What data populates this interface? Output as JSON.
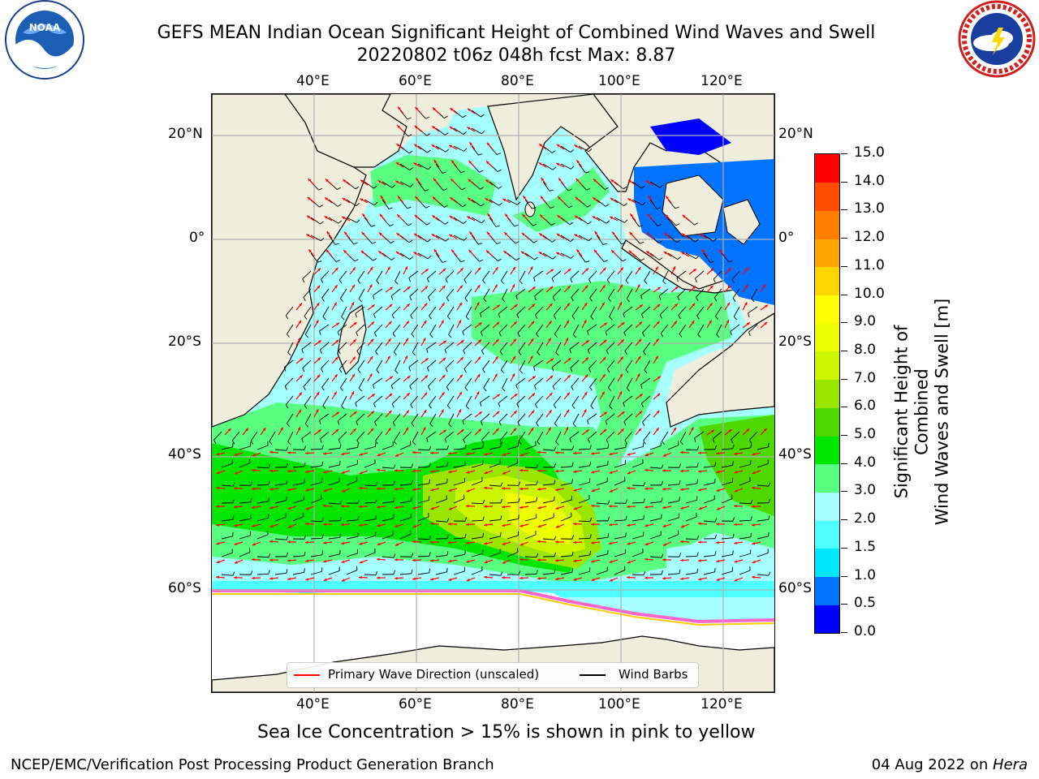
{
  "title_line1": "GEFS MEAN Indian Ocean Significant Height of Combined Wind Waves and Swell",
  "title_line2": "20220802 t06z 048h fcst   Max: 8.87",
  "logos": {
    "left": {
      "text": "NOAA",
      "ring_text": "NATIONAL OCEANIC AND ATMOSPHERIC ADMINISTRATION · U.S. DEPARTMENT OF COMMERCE"
    },
    "right": {
      "ring_text": "NATIONAL WEATHER SERVICE"
    }
  },
  "map": {
    "lon_labels": [
      "40°E",
      "60°E",
      "80°E",
      "100°E",
      "120°E"
    ],
    "lat_labels": [
      "20°N",
      "0°",
      "20°S",
      "40°S",
      "60°S"
    ],
    "lon_range": [
      20,
      130
    ],
    "lat_range": [
      -74,
      28
    ],
    "legend": {
      "red_label": "Primary Wave Direction (unscaled)",
      "black_label": "Wind Barbs"
    }
  },
  "colorbar": {
    "label_line1": "Significant Height of Combined",
    "label_line2": "Wind Waves and Swell [m]",
    "levels": [
      "0.0",
      "0.5",
      "1.0",
      "1.5",
      "2.0",
      "3.0",
      "4.0",
      "5.0",
      "6.0",
      "7.0",
      "8.0",
      "9.0",
      "10.0",
      "11.0",
      "12.0",
      "13.0",
      "14.0",
      "15.0"
    ],
    "colors": [
      "#0000ff",
      "#0073ff",
      "#00e6ff",
      "#4dffff",
      "#a6ffff",
      "#59ff80",
      "#00e600",
      "#4dd900",
      "#99e600",
      "#ccf500",
      "#eeff00",
      "#ffff00",
      "#ffd500",
      "#ffa600",
      "#ff8000",
      "#ff4d00",
      "#ff0000"
    ]
  },
  "ice_note": "Sea Ice Concentration > 15% is shown in pink to yellow",
  "footer_left": "NCEP/EMC/Verification Post Processing Product Generation Branch",
  "footer_right_date": "04 Aug 2022 on ",
  "footer_right_machine": "Hera"
}
